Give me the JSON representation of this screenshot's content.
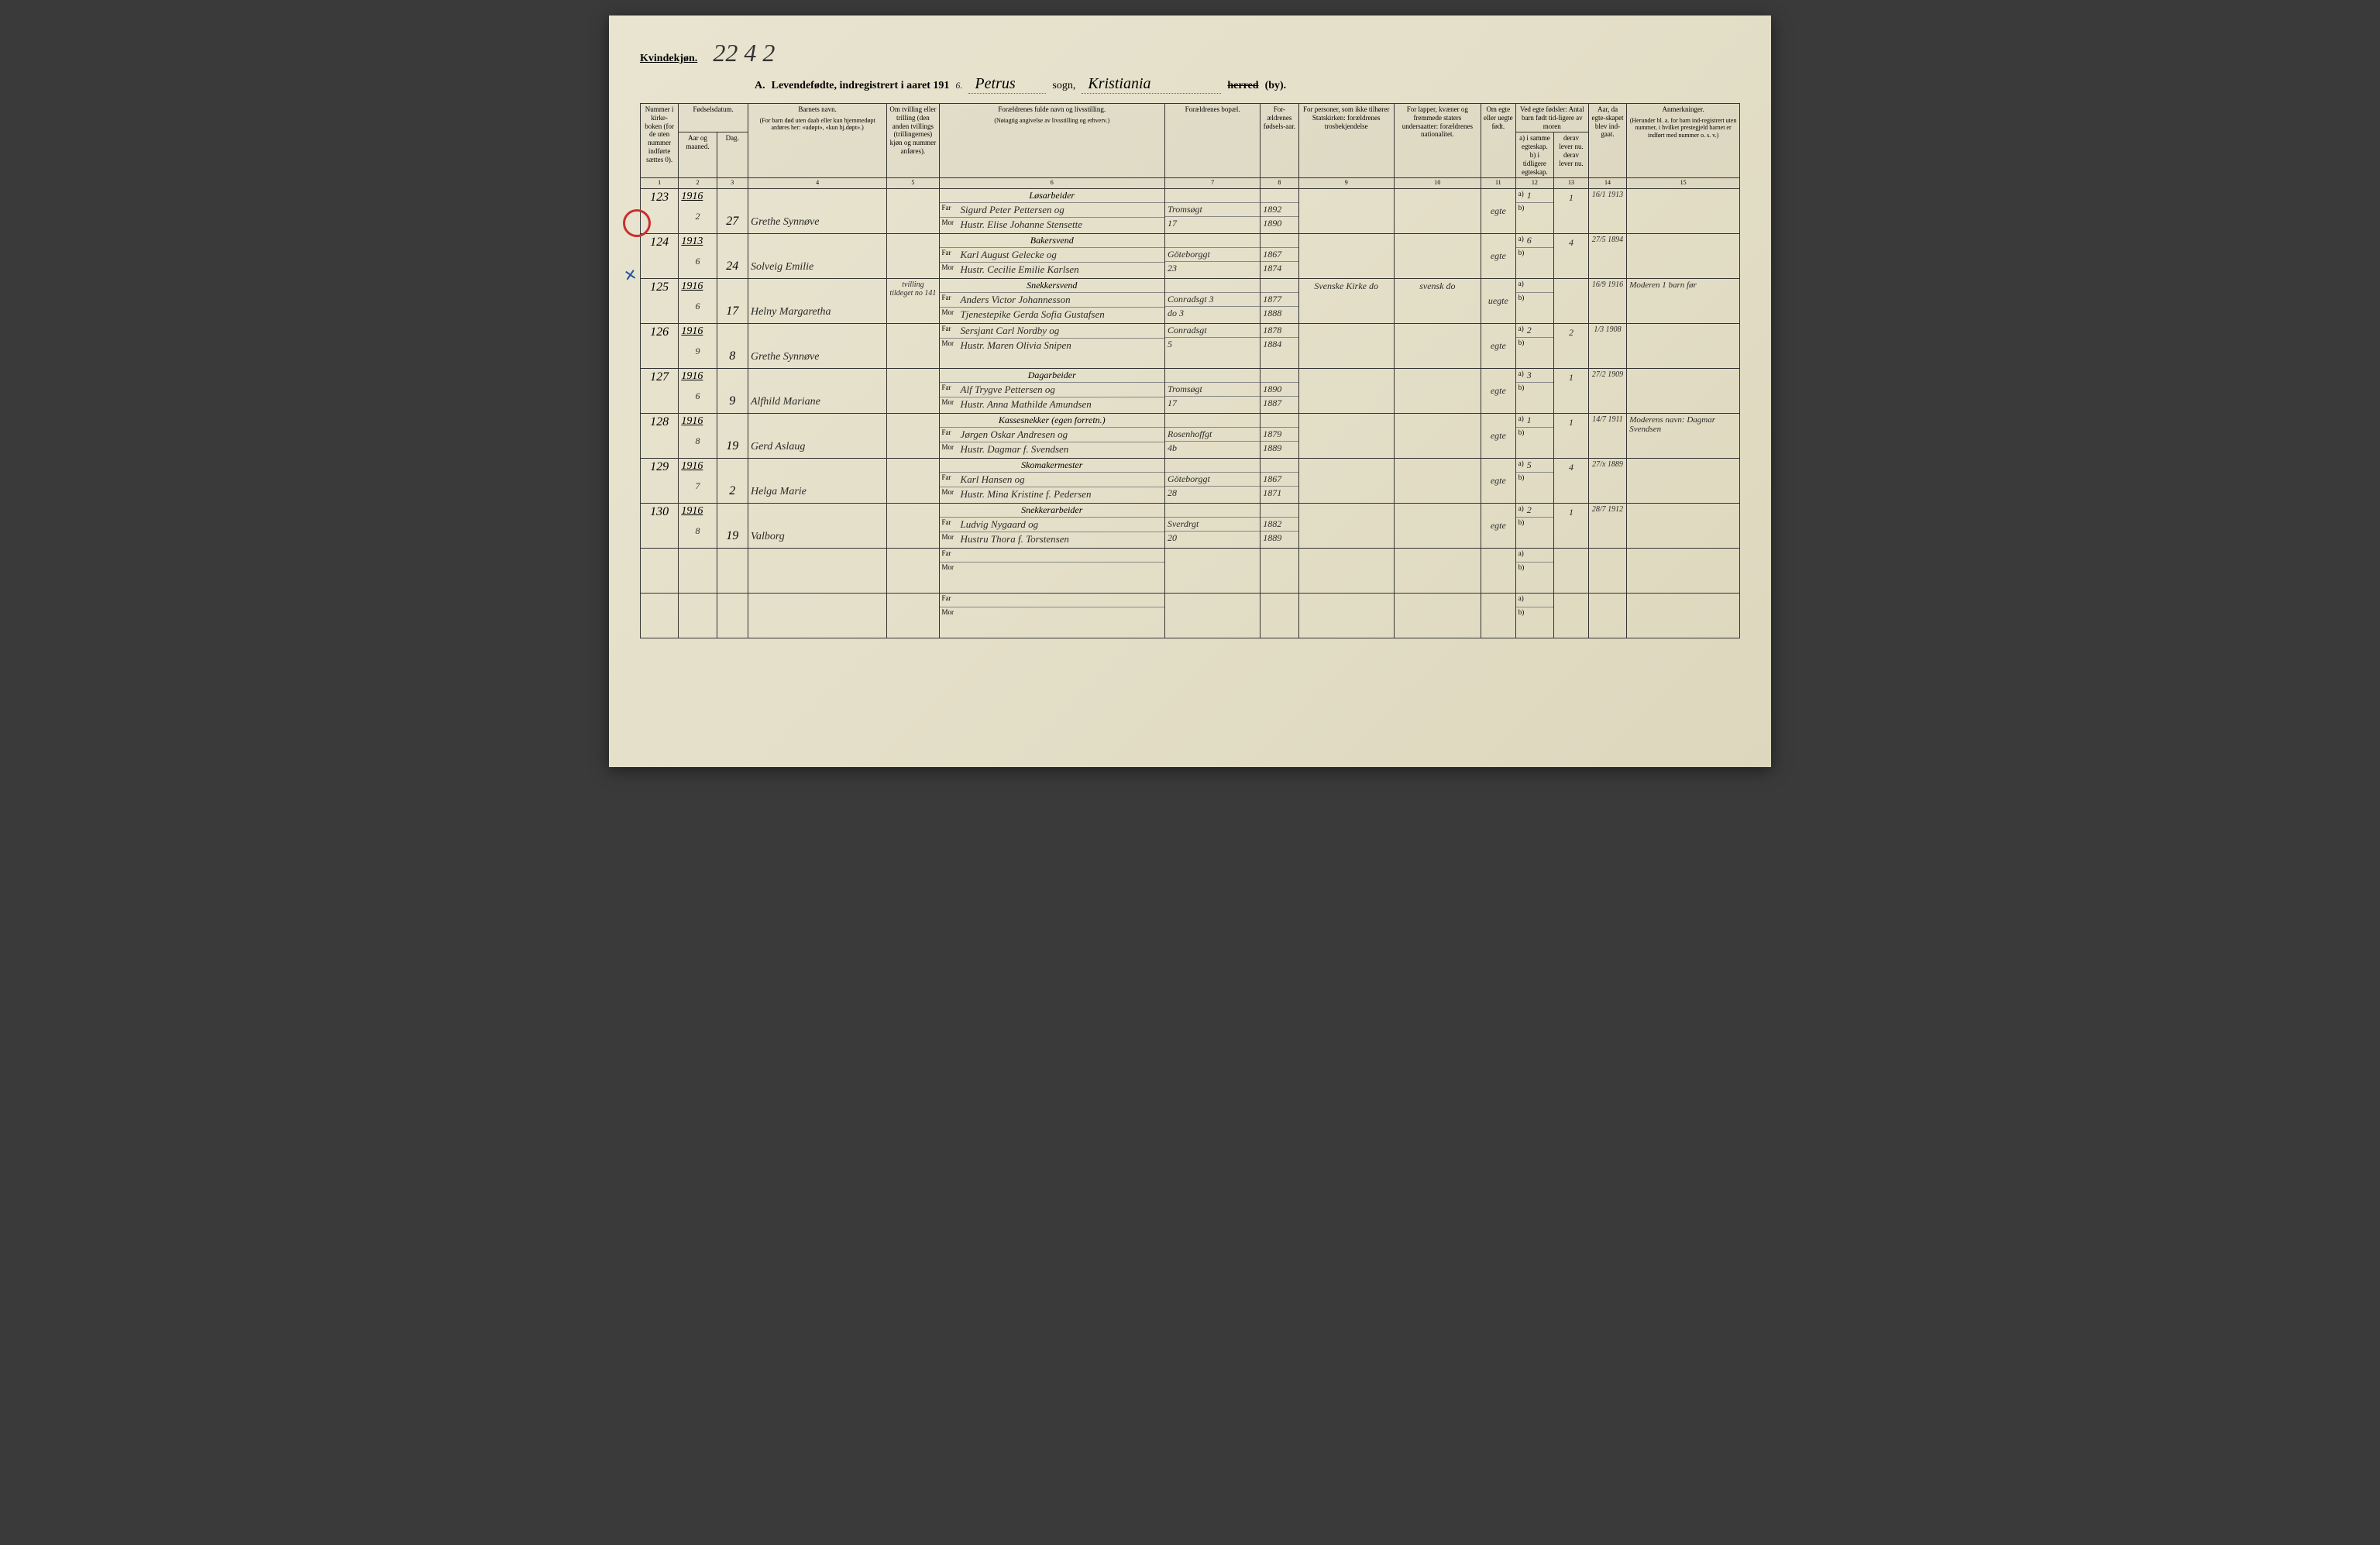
{
  "header": {
    "kvindekjon": "Kvindekjøn.",
    "page_mark": "22 4 2",
    "section": "A.",
    "title": "Levendefødte, indregistrert i aaret 191",
    "year_suffix": "6.",
    "sogn_value": "Petrus",
    "sogn_label": "sogn,",
    "by_value": "Kristiania",
    "herred": "herred",
    "by": "(by)."
  },
  "columns": {
    "c1": "Nummer i kirke-boken (for de uten nummer indførte sættes 0).",
    "c2_group": "Fødselsdatum.",
    "c2a": "Aar og maaned.",
    "c2b": "Dag.",
    "c4": "Barnets navn.",
    "c4_sub": "(For barn død uten daab eller kun hjemmedøpt anføres her: «udøpt», «kun hj.døpt».)",
    "c5": "Om tvilling eller trilling (den anden tvillings (trillingernes) kjøn og nummer anføres).",
    "c6": "Forældrenes fulde navn og livsstilling.",
    "c6_sub": "(Nøiagtig angivelse av livsstilling og erhverv.)",
    "c7": "Forældrenes bopæl.",
    "c8": "For-ældrenes fødsels-aar.",
    "c9": "For personer, som ikke tilhører Statskirken: forældrenes trosbekjendelse",
    "c10": "For lapper, kvæner og fremmede staters undersaatter: forældrenes nationalitet.",
    "c11": "Om egte eller uegte født.",
    "c12": "Ved egte fødsler: Antal barn født tid-ligere av moren",
    "c12a": "a) i samme egteskap. b) i tidligere egteskap.",
    "c12b": "derav lever nu. derav lever nu.",
    "c13": "Aar, da egte-skapet blev ind-gaat.",
    "c14": "Anmerkninger.",
    "c14_sub": "(Herunder bl. a. for barn ind-registrert uten nummer, i hvilket prestegjeld barnet er indført med nummer o. s. v.)"
  },
  "colnums": [
    "1",
    "2",
    "3",
    "4",
    "5",
    "6",
    "7",
    "8",
    "9",
    "10",
    "11",
    "12",
    "13",
    "14",
    "15"
  ],
  "far_label": "Far",
  "mor_label": "Mor",
  "a_label": "a)",
  "b_label": "b)",
  "rows": [
    {
      "num": "123",
      "year": "1916",
      "month": "2",
      "day": "27",
      "name": "Grethe Synnøve",
      "twin": "",
      "occupation": "Løsarbeider",
      "father": "Sigurd Peter Pettersen og",
      "mother": "Hustr. Elise Johanne Stensette",
      "residence_f": "Tromsøgt",
      "residence_m": "17",
      "fyear": "1892",
      "myear": "1890",
      "religion": "",
      "nationality": "",
      "legit": "egte",
      "a_val": "1",
      "b_val": "",
      "lev": "1",
      "marriage": "16/1 1913",
      "remarks": ""
    },
    {
      "num": "124",
      "year": "1913",
      "month": "6",
      "day": "24",
      "name": "Solveig Emilie",
      "twin": "",
      "occupation": "Bakersvend",
      "father": "Karl August Gelecke og",
      "mother": "Hustr. Cecilie Emilie Karlsen",
      "residence_f": "Göteborggt",
      "residence_m": "23",
      "fyear": "1867",
      "myear": "1874",
      "religion": "",
      "nationality": "",
      "legit": "egte",
      "a_val": "6",
      "b_val": "",
      "lev": "4",
      "marriage": "27/5 1894",
      "remarks": ""
    },
    {
      "num": "125",
      "year": "1916",
      "month": "6",
      "day": "17",
      "name": "Helny Margaretha",
      "twin": "tvilling tildeget no 141",
      "occupation": "Snekkersvend",
      "father": "Anders Victor Johannesson",
      "mother": "Tjenestepike Gerda Sofia Gustafsen",
      "residence_f": "Conradsgt 3",
      "residence_m": "do   3",
      "fyear": "1877",
      "myear": "1888",
      "religion": "Svenske Kirke   do",
      "nationality": "svensk   do",
      "legit": "uegte",
      "a_val": "",
      "b_val": "",
      "lev": "",
      "marriage": "16/9 1916",
      "remarks": "Moderen 1 barn før"
    },
    {
      "num": "126",
      "year": "1916",
      "month": "9",
      "day": "8",
      "name": "Grethe Synnøve",
      "twin": "",
      "occupation": "",
      "father": "Sersjant Carl Nordby og",
      "mother": "Hustr. Maren Olivia Snipen",
      "residence_f": "Conradsgt",
      "residence_m": "5",
      "fyear": "1878",
      "myear": "1884",
      "religion": "",
      "nationality": "",
      "legit": "egte",
      "a_val": "2",
      "b_val": "",
      "lev": "2",
      "marriage": "1/3 1908",
      "remarks": ""
    },
    {
      "num": "127",
      "year": "1916",
      "month": "6",
      "day": "9",
      "name": "Alfhild Mariane",
      "twin": "",
      "occupation": "Dagarbeider",
      "father": "Alf Trygve Pettersen og",
      "mother": "Hustr. Anna Mathilde Amundsen",
      "residence_f": "Tromsøgt",
      "residence_m": "17",
      "fyear": "1890",
      "myear": "1887",
      "religion": "",
      "nationality": "",
      "legit": "egte",
      "a_val": "3",
      "b_val": "",
      "lev": "1",
      "marriage": "27/2 1909",
      "remarks": ""
    },
    {
      "num": "128",
      "year": "1916",
      "month": "8",
      "day": "19",
      "name": "Gerd Aslaug",
      "twin": "",
      "occupation": "Kassesnekker (egen forretn.)",
      "father": "Jørgen Oskar Andresen og",
      "mother": "Hustr. Dagmar f. Svendsen",
      "residence_f": "Rosenhoffgt",
      "residence_m": "4b",
      "fyear": "1879",
      "myear": "1889",
      "religion": "",
      "nationality": "",
      "legit": "egte",
      "a_val": "1",
      "b_val": "",
      "lev": "1",
      "marriage": "14/7 1911",
      "remarks": "Moderens navn: Dagmar Svendsen"
    },
    {
      "num": "129",
      "year": "1916",
      "month": "7",
      "day": "2",
      "name": "Helga Marie",
      "twin": "",
      "occupation": "Skomakermester",
      "father": "Karl Hansen og",
      "mother": "Hustr. Mina Kristine f. Pedersen",
      "residence_f": "Göteborggt",
      "residence_m": "28",
      "fyear": "1867",
      "myear": "1871",
      "religion": "",
      "nationality": "",
      "legit": "egte",
      "a_val": "5",
      "b_val": "",
      "lev": "4",
      "marriage": "27/x 1889",
      "remarks": ""
    },
    {
      "num": "130",
      "year": "1916",
      "month": "8",
      "day": "19",
      "name": "Valborg",
      "twin": "",
      "occupation": "Snekkerarbeider",
      "father": "Ludvig Nygaard og",
      "mother": "Hustru Thora f. Torstensen",
      "residence_f": "Sverdrgt",
      "residence_m": "20",
      "fyear": "1882",
      "myear": "1889",
      "religion": "",
      "nationality": "",
      "legit": "egte",
      "a_val": "2",
      "b_val": "",
      "lev": "1",
      "marriage": "28/7 1912",
      "remarks": ""
    }
  ],
  "empty_rows": 2,
  "styling": {
    "page_bg": "#e4dfc8",
    "border_color": "#333333",
    "handwriting_color": "#2a2a2a",
    "red_mark": "#c83030",
    "blue_mark": "#2050a0",
    "header_font_size": 14,
    "cell_font_size": 10,
    "handwriting_font_size": 14
  }
}
